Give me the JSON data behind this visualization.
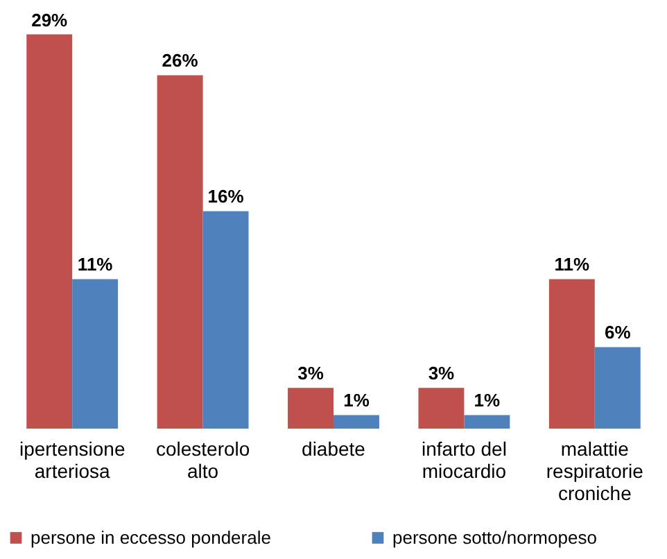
{
  "chart_data": {
    "type": "bar",
    "categories": [
      "ipertensione arteriosa",
      "colesterolo alto",
      "diabete",
      "infarto del miocardio",
      "malattie respiratorie croniche"
    ],
    "series": [
      {
        "name": "persone in eccesso ponderale",
        "color": "#c0504d",
        "values": [
          29,
          26,
          3,
          3,
          11
        ],
        "value_labels": [
          "29%",
          "26%",
          "3%",
          "3%",
          "11%"
        ]
      },
      {
        "name": "persone sotto/normopeso",
        "color": "#4f81bd",
        "values": [
          11,
          16,
          1,
          1,
          6
        ],
        "value_labels": [
          "11%",
          "16%",
          "1%",
          "1%",
          "6%"
        ]
      }
    ],
    "legend": "bottom",
    "grid": false
  }
}
